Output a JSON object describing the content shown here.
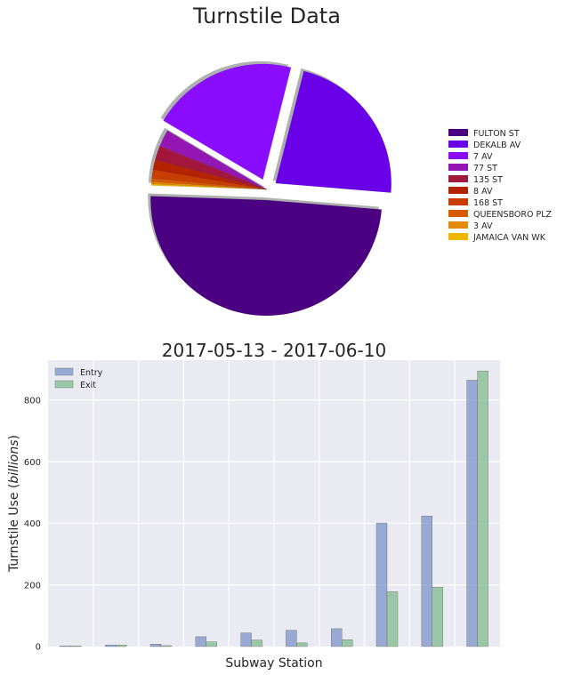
{
  "chart_data": [
    {
      "type": "pie",
      "title": "Turnstile Data",
      "legend_placement": "right",
      "categories": [
        "FULTON ST",
        "DEKALB AV",
        "7 AV",
        "77 ST",
        "135 ST",
        "8 AV",
        "168 ST",
        "QUEENSBORO PLZ",
        "3 AV",
        "JAMAICA VAN WK"
      ],
      "values": [
        49.5,
        22.5,
        20.5,
        2.4,
        2.0,
        1.4,
        1.2,
        0.5,
        0.3,
        0.2
      ],
      "exploded": [
        "FULTON ST",
        "DEKALB AV",
        "7 AV"
      ],
      "colors": [
        "#4b0082",
        "#6a00e8",
        "#8b0cff",
        "#9414b4",
        "#a3193c",
        "#b42300",
        "#c83c00",
        "#d75a00",
        "#e58a00",
        "#efb800"
      ]
    },
    {
      "type": "bar",
      "title": "2017-05-13  -  2017-06-10",
      "xlabel": "Subway Station",
      "ylabel_prefix": "Turnstile Use (",
      "ylabel_italic": "billions",
      "ylabel_suffix": ")",
      "ylim": [
        0,
        930
      ],
      "yticks": [
        "0",
        "200",
        "400",
        "600",
        "800"
      ],
      "grid": true,
      "legend_placement": "top-left",
      "categories_count": 10,
      "series": [
        {
          "name": "Entry",
          "color": "#7c93c8",
          "values": [
            2,
            5,
            8,
            32,
            44,
            53,
            58,
            401,
            424,
            865
          ]
        },
        {
          "name": "Exit",
          "color": "#7fbc8d",
          "values": [
            2,
            5,
            3,
            15,
            21,
            12,
            22,
            178,
            193,
            895
          ]
        }
      ]
    }
  ]
}
